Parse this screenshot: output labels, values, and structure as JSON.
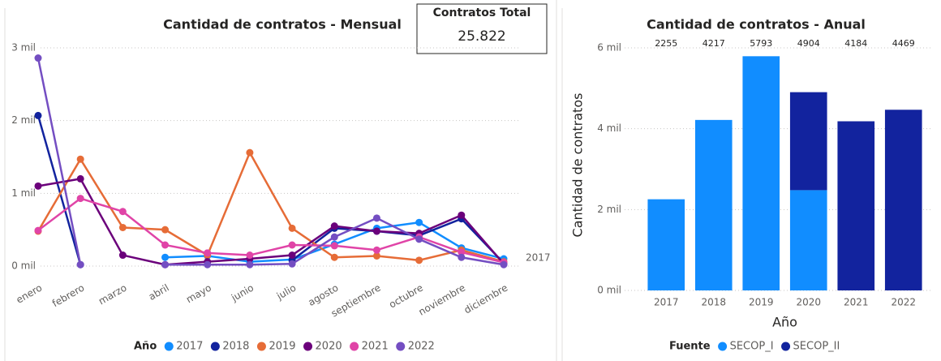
{
  "card": {
    "title": "Contratos Total",
    "value": "25.822"
  },
  "chart_data": [
    {
      "type": "line",
      "title": "Cantidad de contratos - Mensual",
      "categories": [
        "enero",
        "febrero",
        "marzo",
        "abril",
        "mayo",
        "junio",
        "julio",
        "agosto",
        "septiembre",
        "octubre",
        "noviembre",
        "diciembre"
      ],
      "ylim": [
        0,
        3000
      ],
      "yticks": [
        {
          "value": 0,
          "label": "0 mil"
        },
        {
          "value": 1000,
          "label": "1 mil"
        },
        {
          "value": 2000,
          "label": "2 mil"
        },
        {
          "value": 3000,
          "label": "3 mil"
        }
      ],
      "grid": true,
      "legend_title": "Año",
      "legend": "bottom",
      "annotation": "2017",
      "series": [
        {
          "name": "2017",
          "color": "#118DFF",
          "values": [
            null,
            null,
            null,
            120,
            140,
            60,
            90,
            300,
            520,
            600,
            250,
            100
          ]
        },
        {
          "name": "2018",
          "color": "#12239E",
          "values": [
            2070,
            20,
            null,
            null,
            null,
            null,
            80,
            520,
            480,
            420,
            650,
            40
          ]
        },
        {
          "name": "2019",
          "color": "#E66C37",
          "values": [
            480,
            1470,
            530,
            500,
            150,
            1560,
            520,
            120,
            140,
            80,
            220,
            60
          ]
        },
        {
          "name": "2020",
          "color": "#6B007B",
          "values": [
            1100,
            1200,
            150,
            20,
            60,
            100,
            150,
            550,
            480,
            450,
            700,
            30
          ]
        },
        {
          "name": "2021",
          "color": "#E044A7",
          "values": [
            490,
            930,
            750,
            290,
            180,
            150,
            290,
            280,
            220,
            400,
            190,
            50
          ]
        },
        {
          "name": "2022",
          "color": "#744EC2",
          "values": [
            2860,
            20,
            null,
            20,
            20,
            20,
            30,
            400,
            660,
            370,
            120,
            20
          ]
        }
      ]
    },
    {
      "type": "stacked_bar",
      "title": "Cantidad de contratos - Anual",
      "categories": [
        "2017",
        "2018",
        "2019",
        "2020",
        "2021",
        "2022"
      ],
      "xlabel": "Año",
      "ylabel": "Cantidad de contratos",
      "ylim": [
        0,
        6000
      ],
      "yticks": [
        {
          "value": 0,
          "label": "0 mil"
        },
        {
          "value": 2000,
          "label": "2 mil"
        },
        {
          "value": 4000,
          "label": "4 mil"
        },
        {
          "value": 6000,
          "label": "6 mil"
        }
      ],
      "grid": true,
      "legend_title": "Fuente",
      "legend": "bottom",
      "total_labels": [
        2255,
        4217,
        5793,
        4904,
        4184,
        4469
      ],
      "series": [
        {
          "name": "SECOP_I",
          "color": "#118DFF",
          "values": [
            2255,
            4217,
            5793,
            2480,
            0,
            0
          ]
        },
        {
          "name": "SECOP_II",
          "color": "#12239E",
          "values": [
            0,
            0,
            0,
            2424,
            4184,
            4469
          ]
        }
      ]
    }
  ]
}
